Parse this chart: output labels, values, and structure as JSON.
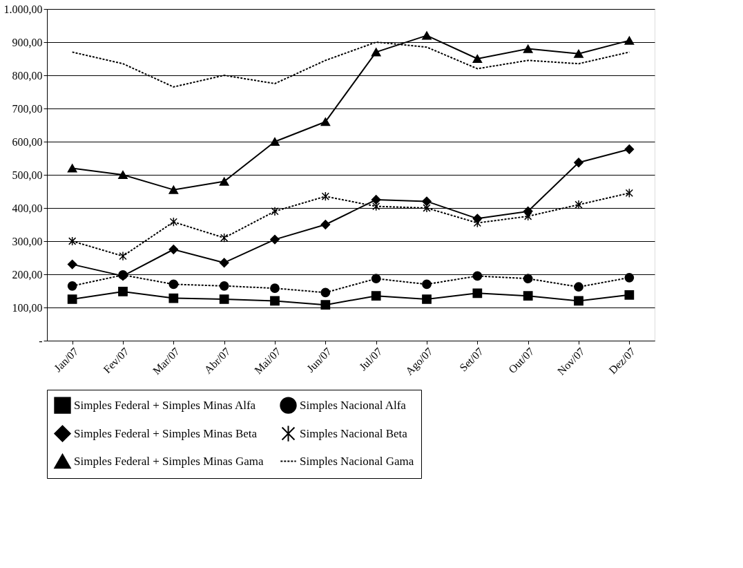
{
  "chart_data": {
    "type": "line",
    "categories": [
      "Jan/07",
      "Fev/07",
      "Mar/07",
      "Abr/07",
      "Mai/07",
      "Jun/07",
      "Jul/07",
      "Ago/07",
      "Set/07",
      "Out/07",
      "Nov/07",
      "Dez/07"
    ],
    "ylim": [
      0,
      1000
    ],
    "yticks": [
      {
        "value": 0,
        "label": "-"
      },
      {
        "value": 100,
        "label": "100,00"
      },
      {
        "value": 200,
        "label": "200,00"
      },
      {
        "value": 300,
        "label": "300,00"
      },
      {
        "value": 400,
        "label": "400,00"
      },
      {
        "value": 500,
        "label": "500,00"
      },
      {
        "value": 600,
        "label": "600,00"
      },
      {
        "value": 700,
        "label": "700,00"
      },
      {
        "value": 800,
        "label": "800,00"
      },
      {
        "value": 900,
        "label": "900,00"
      },
      {
        "value": 1000,
        "label": "1.000,00"
      }
    ],
    "grid": "y",
    "legend": "bottom",
    "series": [
      {
        "name": "Simples Federal + Simples Minas Alfa",
        "color": "#000000",
        "marker": "square",
        "line_style": "solid",
        "values": [
          125,
          148,
          128,
          125,
          120,
          108,
          135,
          125,
          143,
          135,
          120,
          138
        ]
      },
      {
        "name": "Simples Nacional Alfa",
        "color": "#000000",
        "marker": "circle",
        "line_style": "dashed",
        "values": [
          165,
          198,
          170,
          165,
          158,
          145,
          187,
          170,
          195,
          187,
          162,
          190
        ]
      },
      {
        "name": "Simples Federal + Simples Minas Beta",
        "color": "#000000",
        "marker": "diamond",
        "line_style": "solid",
        "values": [
          230,
          195,
          275,
          235,
          305,
          350,
          425,
          420,
          368,
          390,
          537,
          577
        ]
      },
      {
        "name": "Simples Nacional Beta",
        "color": "#000000",
        "marker": "cross",
        "line_style": "dashed",
        "values": [
          300,
          255,
          358,
          310,
          390,
          435,
          405,
          400,
          355,
          375,
          410,
          445
        ]
      },
      {
        "name": "Simples Federal + Simples Minas Gama",
        "color": "#000000",
        "marker": "triangle",
        "line_style": "solid",
        "values": [
          520,
          500,
          455,
          480,
          600,
          660,
          870,
          920,
          850,
          880,
          865,
          905
        ]
      },
      {
        "name": "Simples Nacional Gama",
        "color": "#000000",
        "marker": "none",
        "line_style": "dashed",
        "values": [
          870,
          835,
          765,
          800,
          775,
          845,
          900,
          885,
          820,
          845,
          835,
          870
        ]
      }
    ]
  }
}
